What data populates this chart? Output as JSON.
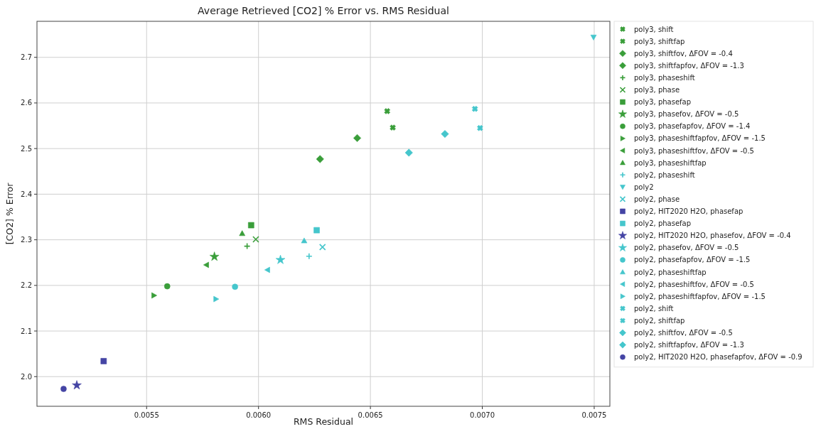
{
  "chart_data": {
    "type": "scatter",
    "title": "Average Retrieved [CO2] % Error vs. RMS Residual",
    "xlabel": "RMS Residual",
    "ylabel": "[CO2] % Error",
    "xlim": [
      0.00501,
      0.00757
    ],
    "ylim": [
      1.935,
      2.779
    ],
    "xticks": [
      0.0055,
      {
        "value": 0.006,
        "label": "0.0060"
      },
      0.0065,
      {
        "value": 0.007,
        "label": "0.0070"
      },
      0.0075
    ],
    "yticks": [
      {
        "value": 2,
        "label": "2.0"
      },
      2.1,
      2.2,
      2.3,
      2.4,
      2.5,
      2.6,
      2.7
    ],
    "grid": true,
    "legend": "right",
    "series": [
      {
        "name": "poly3, shift",
        "color": "#3a9e3a",
        "marker": "cross",
        "x": [
          0.0066
        ],
        "values": [
          2.546
        ]
      },
      {
        "name": "poly3, shiftfap",
        "color": "#3a9e3a",
        "marker": "cross",
        "x": [
          0.006575
        ],
        "values": [
          2.582
        ]
      },
      {
        "name": "poly3, shiftfov, ΔFOV = -0.4",
        "color": "#3a9e3a",
        "marker": "diamond",
        "x": [
          0.006441
        ],
        "values": [
          2.523
        ]
      },
      {
        "name": "poly3, shiftfapfov, ΔFOV = -1.3",
        "color": "#3a9e3a",
        "marker": "diamond",
        "x": [
          0.006275
        ],
        "values": [
          2.477
        ]
      },
      {
        "name": "poly3, phaseshift",
        "color": "#3a9e3a",
        "marker": "plus",
        "x": [
          0.005949
        ],
        "values": [
          2.286
        ]
      },
      {
        "name": "poly3, phase",
        "color": "#3a9e3a",
        "marker": "x",
        "x": [
          0.005988
        ],
        "values": [
          2.301
        ]
      },
      {
        "name": "poly3, phasefap",
        "color": "#3a9e3a",
        "marker": "square",
        "x": [
          0.005967
        ],
        "values": [
          2.332
        ]
      },
      {
        "name": "poly3, phasefov, ΔFOV = -0.5",
        "color": "#3a9e3a",
        "marker": "star",
        "x": [
          0.005803
        ],
        "values": [
          2.263
        ]
      },
      {
        "name": "poly3, phasefapfov, ΔFOV = -1.4",
        "color": "#3a9e3a",
        "marker": "circle",
        "x": [
          0.005592
        ],
        "values": [
          2.198
        ]
      },
      {
        "name": "poly3, phaseshiftfapfov, ΔFOV = -1.5",
        "color": "#3a9e3a",
        "marker": "triangle-right",
        "x": [
          0.005533
        ],
        "values": [
          2.178
        ]
      },
      {
        "name": "poly3, phaseshiftfov, ΔFOV = -0.5",
        "color": "#3a9e3a",
        "marker": "triangle-left",
        "x": [
          0.005767
        ],
        "values": [
          2.245
        ]
      },
      {
        "name": "poly3, phaseshiftfap",
        "color": "#3a9e3a",
        "marker": "triangle",
        "x": [
          0.005927
        ],
        "values": [
          2.314
        ]
      },
      {
        "name": "poly2, phaseshift",
        "color": "#45c6cc",
        "marker": "plus",
        "x": [
          0.006226
        ],
        "values": [
          2.264
        ]
      },
      {
        "name": "poly2",
        "color": "#45c6cc",
        "marker": "triangle-down",
        "x": [
          0.007497
        ],
        "values": [
          2.744
        ]
      },
      {
        "name": "poly2, phase",
        "color": "#45c6cc",
        "marker": "x",
        "x": [
          0.006286
        ],
        "values": [
          2.284
        ]
      },
      {
        "name": "poly2, HIT2020 H2O, phasefap",
        "color": "#4444a4",
        "marker": "square",
        "x": [
          0.005308
        ],
        "values": [
          2.034
        ]
      },
      {
        "name": "poly2, phasefap",
        "color": "#45c6cc",
        "marker": "square",
        "x": [
          0.00626
        ],
        "values": [
          2.321
        ]
      },
      {
        "name": "poly2, HIT2020 H2O, phasefov, ΔFOV = -0.4",
        "color": "#4444a4",
        "marker": "star",
        "x": [
          0.005188
        ],
        "values": [
          1.981
        ]
      },
      {
        "name": "poly2, phasefov, ΔFOV = -0.5",
        "color": "#45c6cc",
        "marker": "star",
        "x": [
          0.006098
        ],
        "values": [
          2.256
        ]
      },
      {
        "name": "poly2, phasefapfov, ΔFOV = -1.5",
        "color": "#45c6cc",
        "marker": "circle",
        "x": [
          0.005895
        ],
        "values": [
          2.197
        ]
      },
      {
        "name": "poly2, phaseshiftfap",
        "color": "#45c6cc",
        "marker": "triangle",
        "x": [
          0.006204
        ],
        "values": [
          2.298
        ]
      },
      {
        "name": "poly2, phaseshiftfov, ΔFOV = -0.5",
        "color": "#45c6cc",
        "marker": "triangle-left",
        "x": [
          0.00604
        ],
        "values": [
          2.234
        ]
      },
      {
        "name": "poly2, phaseshiftfapfov, ΔFOV = -1.5",
        "color": "#45c6cc",
        "marker": "triangle-right",
        "x": [
          0.00581
        ],
        "values": [
          2.17
        ]
      },
      {
        "name": "poly2, shift",
        "color": "#45c6cc",
        "marker": "cross",
        "x": [
          0.00699
        ],
        "values": [
          2.545
        ]
      },
      {
        "name": "poly2, shiftfap",
        "color": "#45c6cc",
        "marker": "cross",
        "x": [
          0.006967
        ],
        "values": [
          2.587
        ]
      },
      {
        "name": "poly2, shiftfov, ΔFOV = -0.5",
        "color": "#45c6cc",
        "marker": "diamond",
        "x": [
          0.006833
        ],
        "values": [
          2.532
        ]
      },
      {
        "name": "poly2, shiftfapfov, ΔFOV = -1.3",
        "color": "#45c6cc",
        "marker": "diamond",
        "x": [
          0.006672
        ],
        "values": [
          2.491
        ]
      },
      {
        "name": "poly2, HIT2020 H2O, phasefapfov, ΔFOV = -0.9",
        "color": "#4444a4",
        "marker": "circle",
        "x": [
          0.005129
        ],
        "values": [
          1.973
        ]
      }
    ]
  }
}
